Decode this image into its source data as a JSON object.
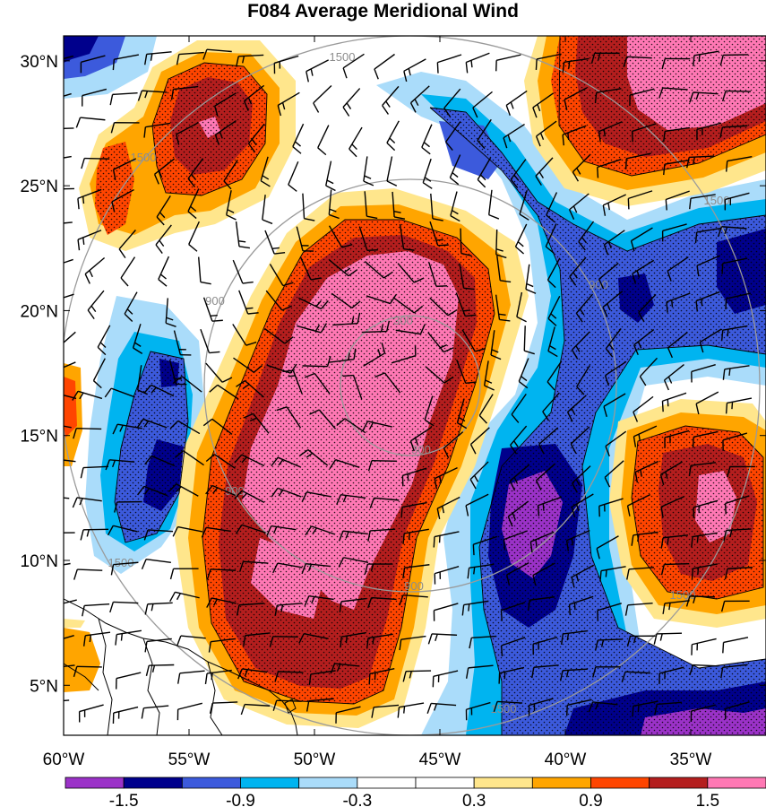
{
  "title": "F084 Average Meridional Wind",
  "map": {
    "lat_labels": [
      "30°N",
      "25°N",
      "20°N",
      "15°N",
      "10°N",
      "5°N"
    ],
    "lon_labels": [
      "60°W",
      "55°W",
      "50°W",
      "45°W",
      "40°W",
      "35°W"
    ],
    "lat_range": [
      3,
      31
    ],
    "lon_range": [
      -60,
      -32
    ],
    "range_ring_labels": [
      "300",
      "900",
      "1500"
    ]
  },
  "colorbar": {
    "ticks": [
      "-1.5",
      "-0.9",
      "-0.3",
      "0.3",
      "0.9",
      "1.5"
    ],
    "colors": [
      "#9b32c8",
      "#00008c",
      "#3c5adc",
      "#00b4f0",
      "#aadcfa",
      "#ffffff",
      "#ffffff",
      "#ffe68c",
      "#ffa500",
      "#ff4500",
      "#b41e1e",
      "#ff78b4"
    ]
  },
  "colors": {
    "ring": "#9a9a9a",
    "barb": "#000000",
    "coast": "#000000"
  }
}
